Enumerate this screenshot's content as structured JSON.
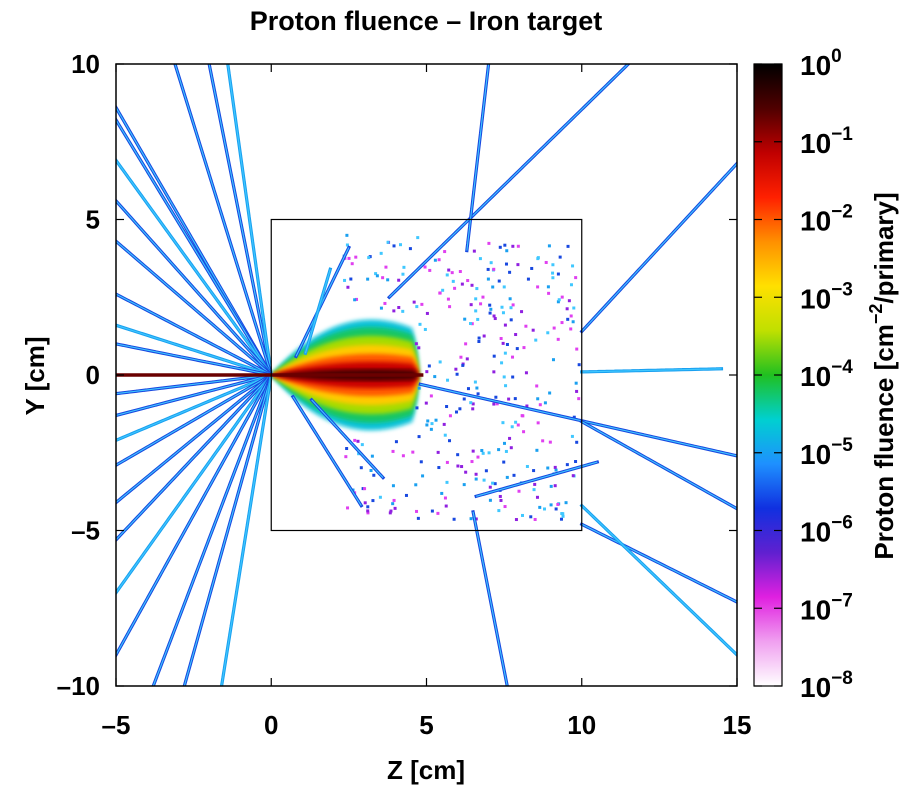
{
  "chart_data": {
    "type": "heatmap",
    "title": "Proton fluence – Iron target",
    "xlabel": "Z [cm]",
    "ylabel": "Y [cm]",
    "xlim": [
      -5,
      15
    ],
    "ylim": [
      -10,
      10
    ],
    "x_ticks": [
      "–5",
      "0",
      "5",
      "10",
      "15"
    ],
    "y_ticks": [
      "10",
      "5",
      "0",
      "–5",
      "–10"
    ],
    "x_tick_values": [
      -5,
      0,
      5,
      10,
      15
    ],
    "y_tick_values": [
      10,
      5,
      0,
      -5,
      -10
    ],
    "colorbar": {
      "label": "Proton fluence [cm⁻²/primary]",
      "label_main": "Proton fluence [cm",
      "label_exp": "−2",
      "label_tail": "/primary]",
      "scale": "log",
      "range": [
        1e-08,
        1
      ],
      "tick_base": "10",
      "tick_exponents": [
        "0",
        "−1",
        "−2",
        "−3",
        "−4",
        "−5",
        "−6",
        "−7",
        "−8"
      ],
      "colors": [
        "#ffffff",
        "#f0a0f0",
        "#e020e0",
        "#6020d0",
        "#1030e0",
        "#1e90ff",
        "#00d0d0",
        "#20c020",
        "#c0e000",
        "#ffe000",
        "#ff9000",
        "#ff2000",
        "#c00000",
        "#500000",
        "#000000"
      ]
    },
    "target_box": {
      "z": [
        0,
        10
      ],
      "y": [
        -5,
        5
      ]
    },
    "beam": {
      "z": [
        -5,
        4.9
      ],
      "y": 0,
      "level": 1
    },
    "core_region": {
      "z_start": 0,
      "z_end": 4.8,
      "half_width_at_end": 2.5,
      "peak_level": 0.3
    },
    "tracks": [
      {
        "z1": 0,
        "y1": 0,
        "z2": -2.0,
        "y2": 10
      },
      {
        "z1": 0,
        "y1": 0,
        "z2": -1.4,
        "y2": 10
      },
      {
        "z1": 0,
        "y1": 0,
        "z2": -3.1,
        "y2": 10
      },
      {
        "z1": 0,
        "y1": 0,
        "z2": -5,
        "y2": 8.6
      },
      {
        "z1": 0,
        "y1": 0,
        "z2": -5,
        "y2": 8.2
      },
      {
        "z1": 0,
        "y1": 0,
        "z2": -5,
        "y2": 6.9
      },
      {
        "z1": 0,
        "y1": 0,
        "z2": -5,
        "y2": 5.6
      },
      {
        "z1": 0,
        "y1": 0,
        "z2": -5,
        "y2": 4.3
      },
      {
        "z1": 0,
        "y1": 0,
        "z2": -5,
        "y2": 2.6
      },
      {
        "z1": 0,
        "y1": 0,
        "z2": -5,
        "y2": 1.6
      },
      {
        "z1": 0,
        "y1": 0,
        "z2": -5,
        "y2": 1.0
      },
      {
        "z1": 0,
        "y1": 0,
        "z2": -5,
        "y2": -0.6
      },
      {
        "z1": 0,
        "y1": 0,
        "z2": -5,
        "y2": -1.3
      },
      {
        "z1": 0,
        "y1": 0,
        "z2": -5,
        "y2": -2.1
      },
      {
        "z1": 0,
        "y1": 0,
        "z2": -5,
        "y2": -2.9
      },
      {
        "z1": 0,
        "y1": 0,
        "z2": -5,
        "y2": -4.1
      },
      {
        "z1": 0,
        "y1": 0,
        "z2": -5,
        "y2": -5.3
      },
      {
        "z1": 0,
        "y1": 0,
        "z2": -5,
        "y2": -7.0
      },
      {
        "z1": 0,
        "y1": 0,
        "z2": -5,
        "y2": -9.0
      },
      {
        "z1": 0,
        "y1": 0,
        "z2": -3.8,
        "y2": -10
      },
      {
        "z1": 0,
        "y1": 0,
        "z2": -2.8,
        "y2": -10
      },
      {
        "z1": 0,
        "y1": 0,
        "z2": -1.6,
        "y2": -10
      },
      {
        "z1": 3.8,
        "y1": 2.5,
        "z2": 11.5,
        "y2": 10
      },
      {
        "z1": 6.3,
        "y1": 4.0,
        "z2": 7.0,
        "y2": 10
      },
      {
        "z1": 10,
        "y1": 1.4,
        "z2": 15,
        "y2": 6.8
      },
      {
        "z1": 10,
        "y1": 0.1,
        "z2": 14.5,
        "y2": 0.2
      },
      {
        "z1": 4.8,
        "y1": -0.3,
        "z2": 15,
        "y2": -2.6
      },
      {
        "z1": 10,
        "y1": -1.5,
        "z2": 15,
        "y2": -4.3
      },
      {
        "z1": 10,
        "y1": -4.8,
        "z2": 15,
        "y2": -7.3
      },
      {
        "z1": 10,
        "y1": -4.2,
        "z2": 15,
        "y2": -9.0
      },
      {
        "z1": 6.5,
        "y1": -4.4,
        "z2": 7.6,
        "y2": -10
      },
      {
        "z1": 6.6,
        "y1": -3.9,
        "z2": 10.5,
        "y2": -2.8
      },
      {
        "z1": 0.8,
        "y1": 0.6,
        "z2": 2.5,
        "y2": 4.1
      },
      {
        "z1": 1.1,
        "y1": 0.7,
        "z2": 1.9,
        "y2": 3.4
      },
      {
        "z1": 0.7,
        "y1": -0.7,
        "z2": 2.9,
        "y2": -4.2
      },
      {
        "z1": 1.3,
        "y1": -0.8,
        "z2": 3.6,
        "y2": -3.3
      }
    ]
  }
}
